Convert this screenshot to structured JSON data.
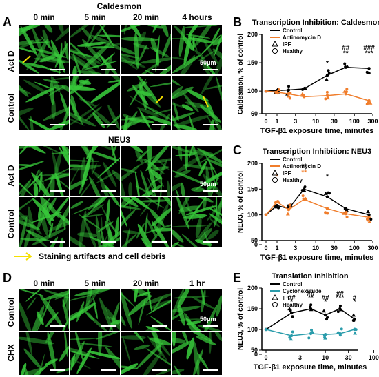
{
  "panels": {
    "A": {
      "letter": "A",
      "title_top": "Caldesmon",
      "title_bottom": "NEU3",
      "columns": [
        "0 min",
        "5 min",
        "20 min",
        "4 hours"
      ],
      "rows": [
        "Act D",
        "Control"
      ],
      "scale": "50μm",
      "legend": "Staining artifacts and cell debris"
    },
    "D": {
      "letter": "D",
      "columns": [
        "0 min",
        "5 min",
        "20 min",
        "1 hr"
      ],
      "rows": [
        "Control",
        "CHX"
      ],
      "scale": "50μm"
    }
  },
  "colors": {
    "control": "#000000",
    "treatment": "#f07d2b",
    "chx": "#2a9cab",
    "fluor": "#37c83a",
    "arrow": "#f5e000"
  },
  "chart_data": [
    {
      "id": "B",
      "letter": "B",
      "type": "line",
      "title": "Transcription Inhibition: Caldesmon",
      "xlabel": "TGF-β1 exposure time, minutes",
      "ylabel": "Caldesmon, % of control",
      "xscale": "log",
      "xticks": [
        "0",
        "1",
        "3",
        "10",
        "30",
        "100",
        "300"
      ],
      "yticks": [
        "60",
        "100",
        "150",
        "200"
      ],
      "ylim": [
        60,
        200
      ],
      "legend": [
        "Control",
        "Actinomycin D",
        "IPF",
        "Healthy"
      ],
      "x": [
        0,
        1,
        2,
        5,
        20,
        60,
        240
      ],
      "series": [
        {
          "name": "Control",
          "values": [
            100,
            101,
            102,
            104,
            128,
            142,
            140
          ]
        },
        {
          "name": "Actinomycin D",
          "values": [
            100,
            98,
            95,
            90,
            92,
            95,
            83
          ]
        }
      ],
      "annotations": [
        {
          "x": 20,
          "text": "*",
          "y": 150
        },
        {
          "x": 60,
          "text": "##",
          "y": 178
        },
        {
          "x": 60,
          "text": "**",
          "y": 168
        },
        {
          "x": 240,
          "text": "###",
          "y": 178
        },
        {
          "x": 240,
          "text": "***",
          "y": 168
        }
      ]
    },
    {
      "id": "C",
      "letter": "C",
      "type": "line",
      "title": "Transcription Inhibition: NEU3",
      "xlabel": "TGF-β1 exposure time, minutes",
      "ylabel": "NEU3, % of control",
      "xscale": "log",
      "xticks": [
        "0",
        "1",
        "3",
        "10",
        "30",
        "100",
        "300"
      ],
      "yticks": [
        "0",
        "50",
        "100",
        "150",
        "200"
      ],
      "ylim": [
        50,
        200
      ],
      "legend": [
        "Control",
        "Actinomycin D",
        "IPF",
        "Healthy"
      ],
      "x": [
        0,
        1,
        2,
        5,
        20,
        60,
        240
      ],
      "series": [
        {
          "name": "Control",
          "values": [
            100,
            118,
            112,
            150,
            135,
            112,
            100
          ]
        },
        {
          "name": "Actinomycin D",
          "values": [
            100,
            125,
            110,
            130,
            112,
            102,
            95
          ]
        }
      ],
      "annotations": [
        {
          "x": 1,
          "text": "*",
          "y": 175,
          "color": "treatment"
        },
        {
          "x": 5,
          "text": "**",
          "y": 195
        },
        {
          "x": 5,
          "text": "**",
          "y": 183,
          "color": "treatment"
        },
        {
          "x": 20,
          "text": "*",
          "y": 175
        }
      ]
    },
    {
      "id": "E",
      "letter": "E",
      "type": "line",
      "title": "Translation Inhibition",
      "xlabel": "TGF-β1 exposure time, minutes",
      "ylabel": "NEU3, % of control",
      "xscale": "log",
      "xticks": [
        "0",
        "3",
        "10",
        "30",
        "100"
      ],
      "yticks": [
        "0",
        "50",
        "100",
        "150",
        "200"
      ],
      "ylim": [
        50,
        200
      ],
      "legend": [
        "Control",
        "Cycloheximide",
        "IPF",
        "Healthy"
      ],
      "x": [
        0,
        2,
        5,
        10,
        20,
        40
      ],
      "series": [
        {
          "name": "Control",
          "values": [
            100,
            140,
            150,
            135,
            150,
            125
          ]
        },
        {
          "name": "Cycloheximide",
          "values": [
            100,
            85,
            90,
            88,
            90,
            100
          ]
        }
      ],
      "annotations": [
        {
          "x": 2,
          "text": "##",
          "y": 178
        },
        {
          "x": 2,
          "text": "*",
          "y": 168
        },
        {
          "x": 5,
          "text": "##",
          "y": 188
        },
        {
          "x": 5,
          "text": "**",
          "y": 178
        },
        {
          "x": 10,
          "text": "##",
          "y": 178
        },
        {
          "x": 10,
          "text": "*",
          "y": 168
        },
        {
          "x": 20,
          "text": "##",
          "y": 188
        },
        {
          "x": 20,
          "text": "***",
          "y": 178
        },
        {
          "x": 40,
          "text": "#",
          "y": 178
        },
        {
          "x": 40,
          "text": "*",
          "y": 168
        }
      ]
    }
  ]
}
